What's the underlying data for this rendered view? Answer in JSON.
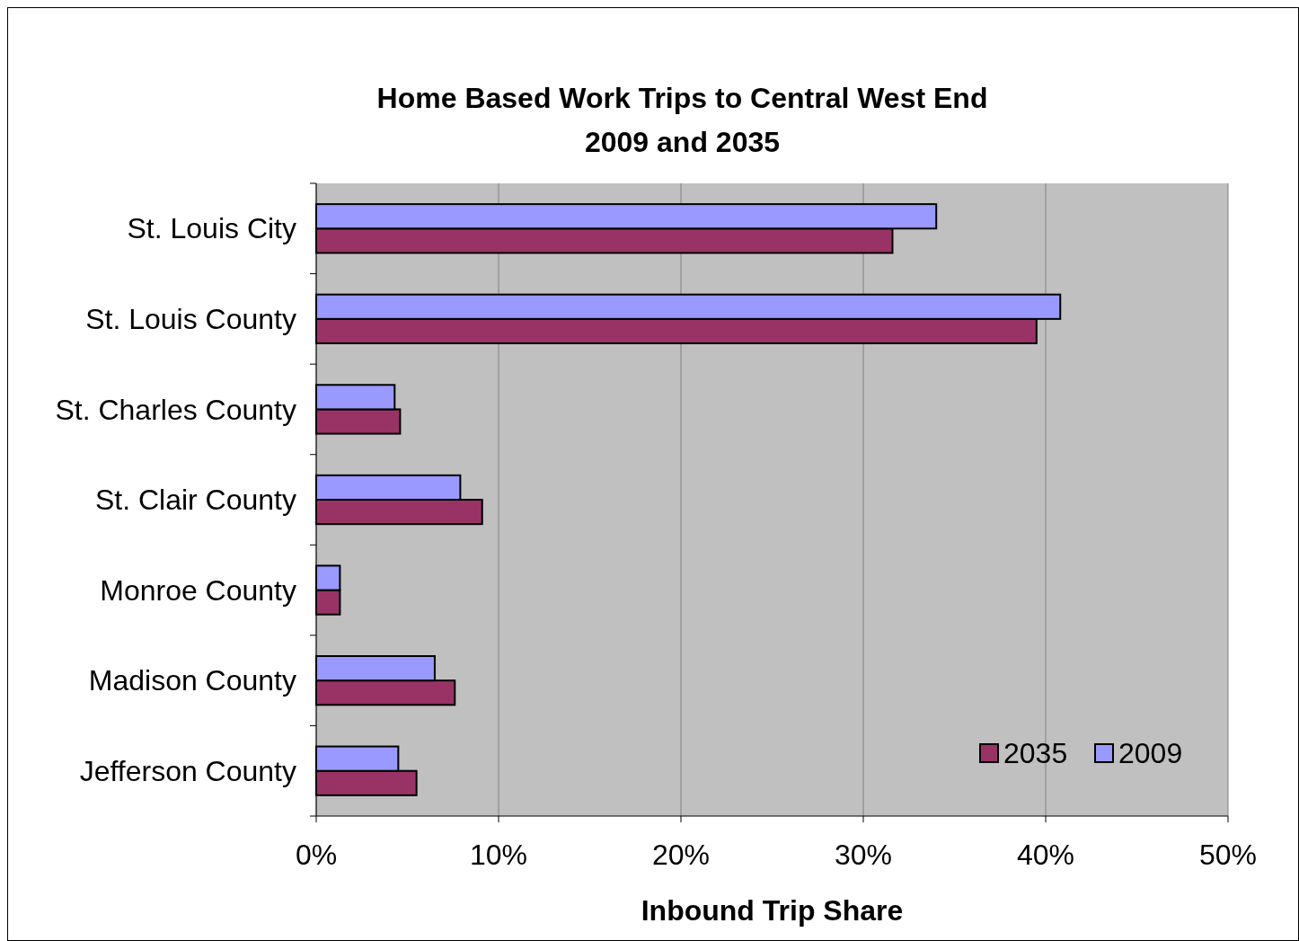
{
  "chart_data": {
    "type": "bar",
    "orientation": "horizontal",
    "title": "Home Based Work Trips to Central West End\n2009 and 2035",
    "xlabel": "Inbound Trip Share",
    "categories": [
      "St. Louis City",
      "St. Louis County",
      "St. Charles County",
      "St. Clair County",
      "Monroe County",
      "Madison County",
      "Jefferson County"
    ],
    "series": [
      {
        "name": "2035",
        "color": "#993366",
        "values": [
          31.6,
          39.5,
          4.6,
          9.1,
          1.3,
          7.6,
          5.5
        ]
      },
      {
        "name": "2009",
        "color": "#9999ff",
        "values": [
          34.0,
          40.8,
          4.3,
          7.9,
          1.3,
          6.5,
          4.5
        ]
      }
    ],
    "xlim": [
      0,
      50
    ],
    "xticks": [
      {
        "value": 0,
        "label": "0%"
      },
      {
        "value": 10,
        "label": "10%"
      },
      {
        "value": 20,
        "label": "20%"
      },
      {
        "value": 30,
        "label": "30%"
      },
      {
        "value": 40,
        "label": "40%"
      },
      {
        "value": 50,
        "label": "50%"
      }
    ],
    "grid": "x",
    "legend": "bottom right"
  }
}
